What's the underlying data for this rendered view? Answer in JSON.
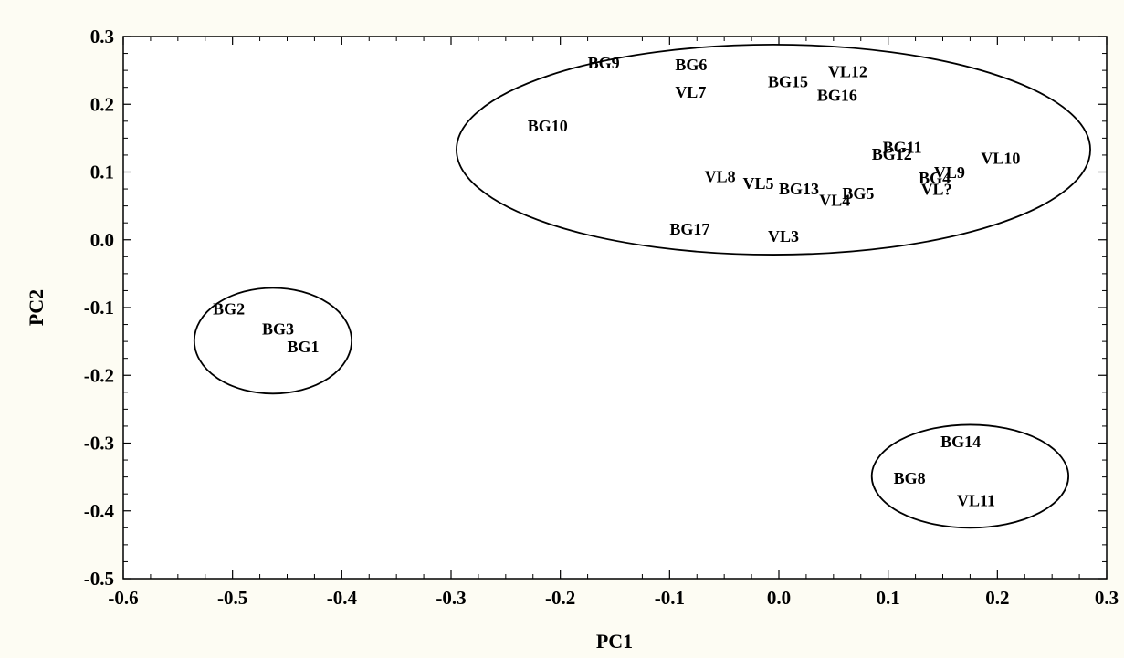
{
  "chart_data": {
    "type": "scatter",
    "title": "",
    "xlabel": "PC1",
    "ylabel": "PC2",
    "xlim": [
      -0.6,
      0.3
    ],
    "ylim": [
      -0.5,
      0.3
    ],
    "x_ticks": [
      "-0.6",
      "-0.5",
      "-0.4",
      "-0.3",
      "-0.2",
      "-0.1",
      "0.0",
      "0.1",
      "0.2",
      "0.3"
    ],
    "y_ticks": [
      "0.3",
      "0.2",
      "0.1",
      "0.0",
      "-0.1",
      "-0.2",
      "-0.3",
      "-0.4",
      "-0.5"
    ],
    "grid": false,
    "legend": "none",
    "points": [
      {
        "label": "BG9",
        "x": -0.175,
        "y": 0.253
      },
      {
        "label": "BG6",
        "x": -0.095,
        "y": 0.25
      },
      {
        "label": "VL7",
        "x": -0.095,
        "y": 0.21
      },
      {
        "label": "BG15",
        "x": -0.01,
        "y": 0.225
      },
      {
        "label": "VL12",
        "x": 0.045,
        "y": 0.24
      },
      {
        "label": "BG16",
        "x": 0.035,
        "y": 0.205
      },
      {
        "label": "BG10",
        "x": -0.23,
        "y": 0.16
      },
      {
        "label": "BG11",
        "x": 0.095,
        "y": 0.128
      },
      {
        "label": "BG12",
        "x": 0.085,
        "y": 0.118
      },
      {
        "label": "VL10",
        "x": 0.185,
        "y": 0.112
      },
      {
        "label": "VL9",
        "x": 0.142,
        "y": 0.091
      },
      {
        "label": "BG4",
        "x": 0.128,
        "y": 0.083
      },
      {
        "label": "VL?",
        "x": 0.13,
        "y": 0.066
      },
      {
        "label": "VL8",
        "x": -0.068,
        "y": 0.085
      },
      {
        "label": "VL5",
        "x": -0.033,
        "y": 0.075
      },
      {
        "label": "BG13",
        "x": 0.0,
        "y": 0.067
      },
      {
        "label": "BG5",
        "x": 0.058,
        "y": 0.06
      },
      {
        "label": "VL4",
        "x": 0.037,
        "y": 0.05
      },
      {
        "label": "BG17",
        "x": -0.1,
        "y": 0.008
      },
      {
        "label": "VL3",
        "x": -0.01,
        "y": -0.003
      },
      {
        "label": "BG2",
        "x": -0.518,
        "y": -0.11
      },
      {
        "label": "BG3",
        "x": -0.473,
        "y": -0.14
      },
      {
        "label": "BG1",
        "x": -0.45,
        "y": -0.166
      },
      {
        "label": "BG14",
        "x": 0.148,
        "y": -0.306
      },
      {
        "label": "BG8",
        "x": 0.105,
        "y": -0.36
      },
      {
        "label": "VL11",
        "x": 0.163,
        "y": -0.393
      }
    ],
    "groups": [
      {
        "cx": -0.005,
        "cy": 0.133,
        "rx": 0.29,
        "ry": 0.155
      },
      {
        "cx": -0.463,
        "cy": -0.149,
        "rx": 0.072,
        "ry": 0.078
      },
      {
        "cx": 0.175,
        "cy": -0.349,
        "rx": 0.09,
        "ry": 0.076
      }
    ]
  }
}
